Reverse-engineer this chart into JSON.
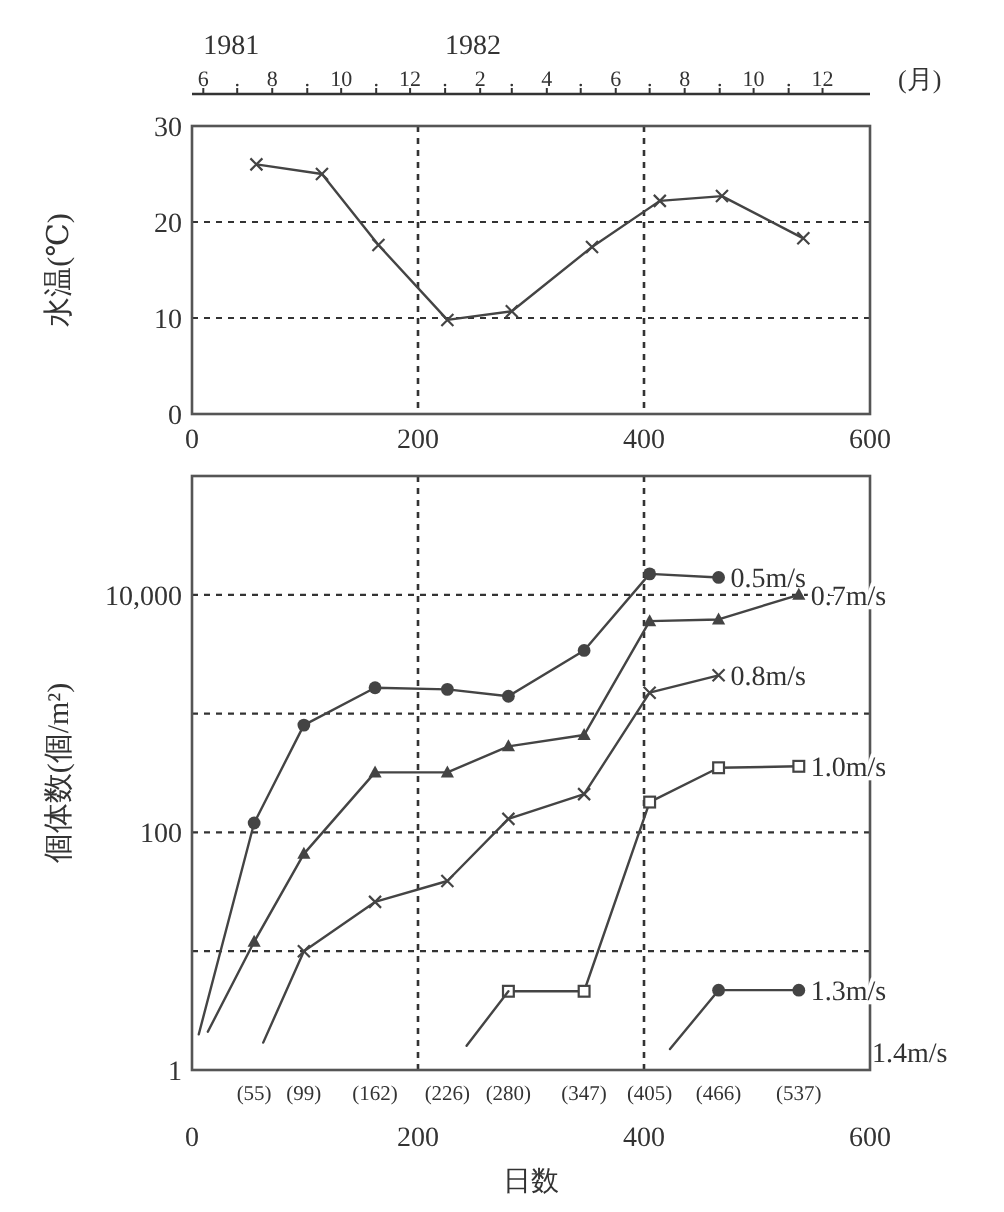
{
  "chart_data": [
    {
      "type": "line",
      "ylabel": "水温(℃)",
      "x2label": "(月)",
      "xlim": [
        0,
        600
      ],
      "xticks": [
        0,
        200,
        400,
        600
      ],
      "ylim": [
        0,
        30
      ],
      "yticks": [
        0,
        10,
        20,
        30
      ],
      "x2lim": [
        "1981-05-22",
        "1983-01-12"
      ],
      "x2ticks": [
        {
          "value": "1981-06",
          "label": "6"
        },
        {
          "value": "1981-07",
          "label": "."
        },
        {
          "value": "1981-08",
          "label": "8"
        },
        {
          "value": "1981-09",
          "label": "."
        },
        {
          "value": "1981-10",
          "label": "10"
        },
        {
          "value": "1981-11",
          "label": "."
        },
        {
          "value": "1981-12",
          "label": "12"
        },
        {
          "value": "1982-01",
          "label": "."
        },
        {
          "value": "1982-02",
          "label": "2"
        },
        {
          "value": "1982-03",
          "label": "."
        },
        {
          "value": "1982-04",
          "label": "4"
        },
        {
          "value": "1982-05",
          "label": "."
        },
        {
          "value": "1982-06",
          "label": "6"
        },
        {
          "value": "1982-07",
          "label": "."
        },
        {
          "value": "1982-08",
          "label": "8"
        },
        {
          "value": "1982-09",
          "label": "."
        },
        {
          "value": "1982-10",
          "label": "10"
        },
        {
          "value": "1982-11",
          "label": "."
        },
        {
          "value": "1982-12",
          "label": "12"
        }
      ],
      "annotations": [
        "1981",
        "1982"
      ],
      "grid": true,
      "marker": "cross",
      "line_style": "solid",
      "series": [
        {
          "color": "#444444",
          "x": [
            57,
            115,
            165,
            226,
            283,
            354,
            414,
            469,
            541
          ],
          "values": [
            26.0,
            25.0,
            17.6,
            9.8,
            10.7,
            17.4,
            22.2,
            22.7,
            18.3
          ]
        }
      ]
    },
    {
      "type": "line",
      "ylabel": "個体数(個/m²)",
      "xlabel": "日数",
      "log": "y",
      "xlim": [
        0,
        600
      ],
      "xticks": [
        0,
        200,
        400,
        600
      ],
      "ylim": [
        1,
        100000
      ],
      "yticks": [
        1,
        {
          "value": 10,
          "label": null
        },
        100,
        {
          "value": 1000,
          "label": null
        },
        {
          "value": 10000,
          "label": "10,000"
        }
      ],
      "grid": true,
      "line_style": "solid",
      "annotations": [
        "(55)",
        "(99)",
        "(162)",
        "(226)",
        "(280)",
        "(347)",
        "(405)",
        "(466)",
        "(537)",
        "1.4m/s"
      ],
      "series": [
        {
          "name": "0.5m/s",
          "color": "#444444",
          "marker": "circle",
          "x": [
            55,
            99,
            162,
            226,
            280,
            347,
            405,
            466
          ],
          "values": [
            120,
            800,
            1650,
            1600,
            1400,
            3400,
            15000,
            14000
          ]
        },
        {
          "name": "0.7m/s",
          "color": "#444444",
          "marker": "triangle",
          "x": [
            55,
            99,
            162,
            226,
            280,
            347,
            405,
            466,
            537
          ],
          "values": [
            12,
            66,
            320,
            320,
            530,
            660,
            6000,
            6200,
            10000
          ]
        },
        {
          "name": "0.8m/s",
          "color": "#444444",
          "marker": "cross",
          "x": [
            99,
            162,
            226,
            280,
            347,
            405,
            466
          ],
          "values": [
            10,
            26,
            39,
            130,
            210,
            1500,
            2100
          ]
        },
        {
          "name": "1.0m/s",
          "color": "#444444",
          "marker": "square",
          "x": [
            280,
            347,
            405,
            466,
            537
          ],
          "values": [
            4.6,
            4.6,
            180,
            350,
            360
          ]
        },
        {
          "name": "1.3m/s",
          "color": "#444444",
          "marker": "circle",
          "x": [
            466,
            537
          ],
          "values": [
            4.7,
            4.7
          ]
        },
        {
          "color": "#444444",
          "marker": "none",
          "x": [
            6,
            55
          ],
          "values": [
            2.0,
            120
          ]
        },
        {
          "color": "#444444",
          "marker": "none",
          "x": [
            14,
            55
          ],
          "values": [
            2.1,
            12
          ]
        },
        {
          "color": "#444444",
          "marker": "none",
          "x": [
            63,
            99
          ],
          "values": [
            1.7,
            10
          ]
        },
        {
          "color": "#444444",
          "marker": "none",
          "x": [
            243,
            280
          ],
          "values": [
            1.6,
            4.6
          ]
        },
        {
          "color": "#444444",
          "marker": "none",
          "x": [
            423,
            466
          ],
          "values": [
            1.5,
            4.7
          ]
        }
      ]
    }
  ]
}
